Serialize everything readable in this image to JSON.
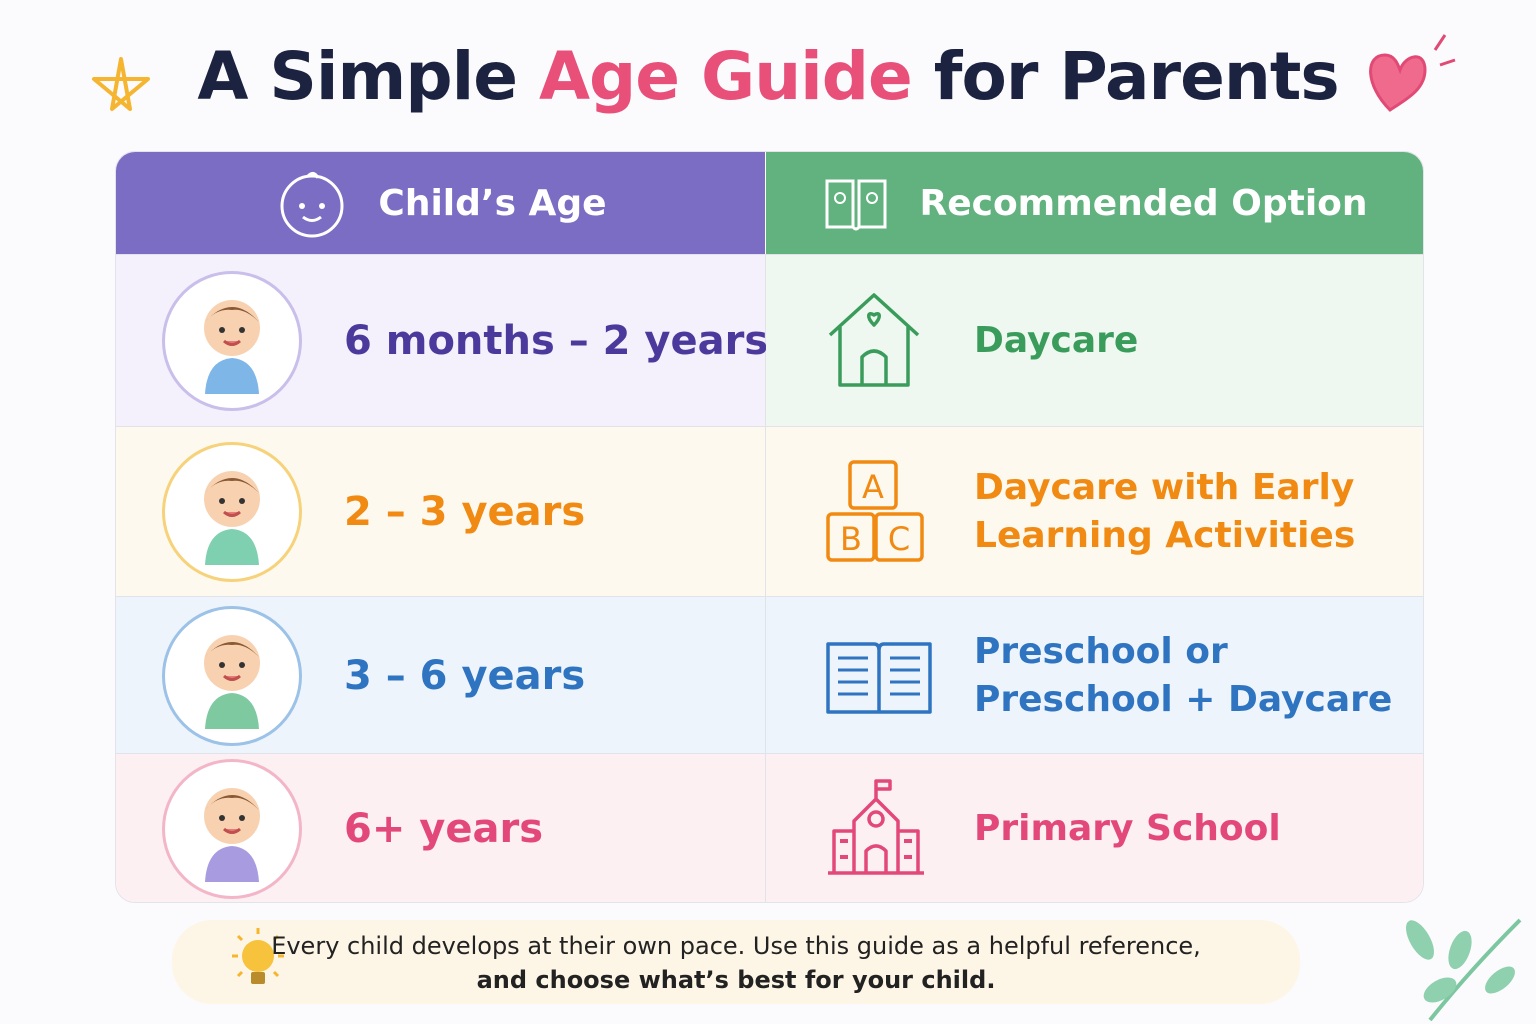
{
  "header": {
    "title": {
      "before": "A Simple",
      "highlight": "Age Guide",
      "after": "for Parents"
    }
  },
  "table": {
    "headers": [
      "Child’s Age",
      "Recommended Option"
    ],
    "rows": [
      {
        "age": "6 months – 2 years",
        "option": [
          "Daycare"
        ]
      },
      {
        "age": "2 – 3 years",
        "option": [
          "Daycare with Early",
          "Learning Activities"
        ]
      },
      {
        "age": "3 – 6 years",
        "option": [
          "Preschool or",
          "Preschool + Daycare"
        ]
      },
      {
        "age": "6+ years",
        "option": [
          "Primary School"
        ]
      }
    ]
  },
  "footer": {
    "note": "Every child develops at their own pace. Use this guide as a helpful reference,",
    "emphasis": "and choose what’s best for your child."
  }
}
